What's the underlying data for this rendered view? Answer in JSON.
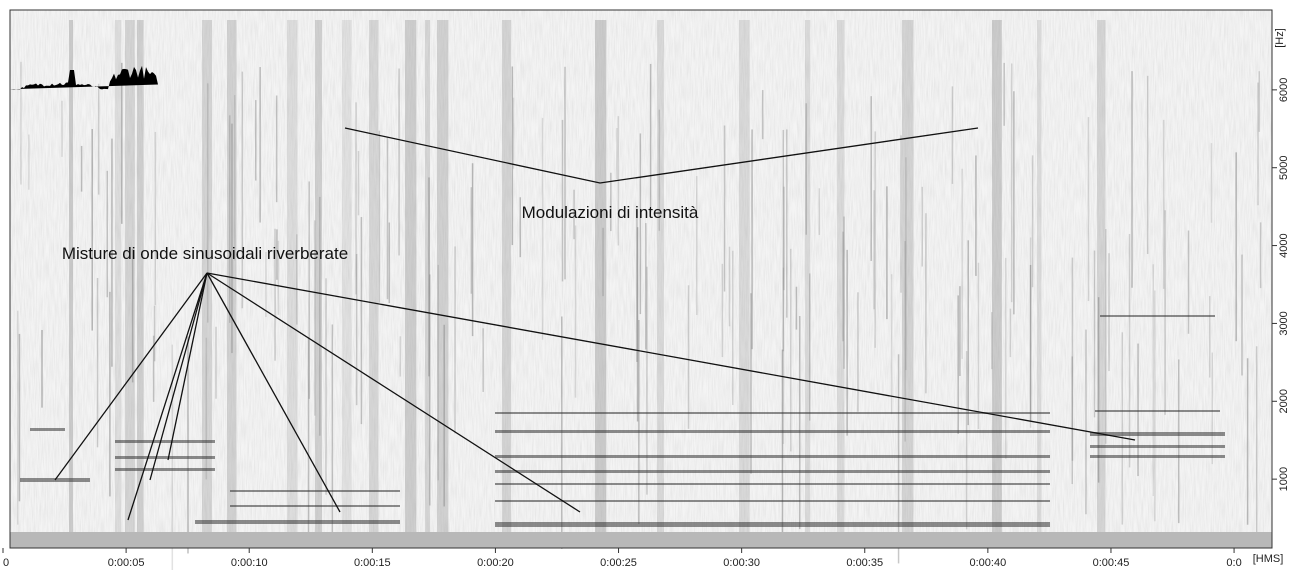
{
  "chart_data": {
    "type": "spectrogram",
    "x_label": "[HMS]",
    "y_label": "[Hz]",
    "xlim": [
      0,
      51.5
    ],
    "ylim": [
      0,
      7000
    ],
    "xticks": [
      0,
      {
        "value": 5,
        "label": "0:00:05"
      },
      {
        "value": 10,
        "label": "0:00:10"
      },
      {
        "value": 15,
        "label": "0:00:15"
      },
      {
        "value": 20,
        "label": "0:00:20"
      },
      {
        "value": 25,
        "label": "0:00:25"
      },
      {
        "value": 30,
        "label": "0:00:30"
      },
      {
        "value": 35,
        "label": "0:00:35"
      },
      {
        "value": 40,
        "label": "0:00:40"
      },
      {
        "value": 45,
        "label": "0:00:45"
      },
      {
        "value": 50,
        "label": "0:0"
      }
    ],
    "yticks": [
      1000,
      2000,
      3000,
      4000,
      5000,
      6000
    ],
    "annotations": [
      "Modulazioni di intensità",
      "Misture di onde sinusoidali riverberate"
    ]
  }
}
